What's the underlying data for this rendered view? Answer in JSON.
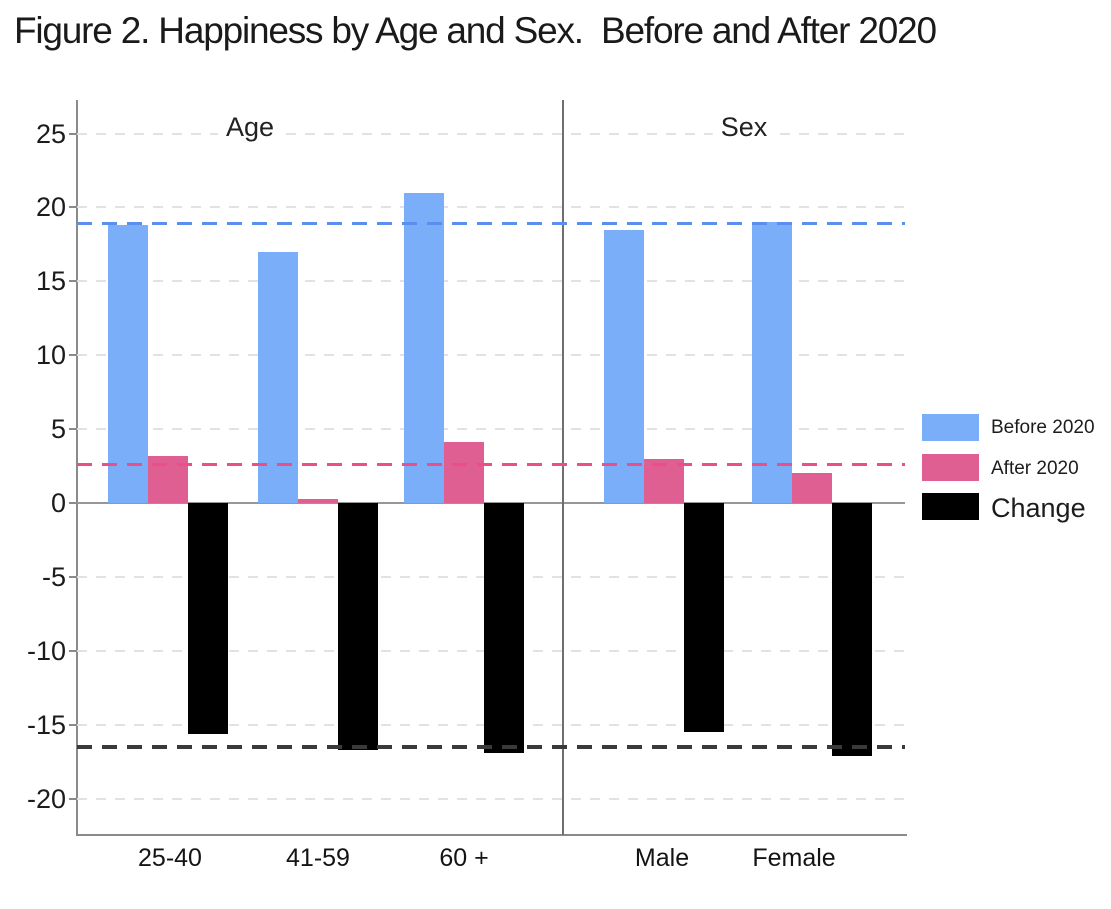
{
  "title": "Figure 2. Happiness by Age and Sex.  Before and After 2020",
  "chart_data": {
    "type": "bar",
    "title": "Figure 2. Happiness by Age and Sex.  Before and After 2020",
    "panels": [
      {
        "label": "Age",
        "categories": [
          "25-40",
          "41-59",
          "60 +"
        ]
      },
      {
        "label": "Sex",
        "categories": [
          "Male",
          "Female"
        ]
      }
    ],
    "categories": [
      "25-40",
      "41-59",
      "60 +",
      "Male",
      "Female"
    ],
    "series": [
      {
        "name": "Before 2020",
        "color": "#7aaef8",
        "values": [
          18.8,
          17.0,
          21.0,
          18.5,
          19.0
        ]
      },
      {
        "name": "After 2020",
        "color": "#df5f93",
        "values": [
          3.2,
          0.3,
          4.1,
          3.0,
          2.0
        ]
      },
      {
        "name": "Change",
        "color": "#000000",
        "values": [
          -15.6,
          -16.7,
          -16.9,
          -15.5,
          -17.1
        ]
      }
    ],
    "reference_lines": [
      {
        "series": "Before 2020",
        "value": 18.9,
        "color": "#5b8fef",
        "style": "dashed"
      },
      {
        "series": "After 2020",
        "value": 2.6,
        "color": "#ee4e88",
        "style": "dashed"
      },
      {
        "series": "Change",
        "value": -16.5,
        "color": "#3a3a3a",
        "style": "dashed"
      }
    ],
    "yticks": [
      25,
      20,
      15,
      10,
      5,
      0,
      -5,
      -10,
      -15,
      -20
    ],
    "ylim": [
      -22.5,
      27.3
    ],
    "xlabel": "",
    "ylabel": "",
    "grid": "horizontal-dashed",
    "legend_position": "right"
  },
  "legend": {
    "items": [
      {
        "label": "Before 2020",
        "color": "#7aaef8"
      },
      {
        "label": "After 2020",
        "color": "#df5f93"
      },
      {
        "label": "Change",
        "color": "#000000"
      }
    ]
  }
}
